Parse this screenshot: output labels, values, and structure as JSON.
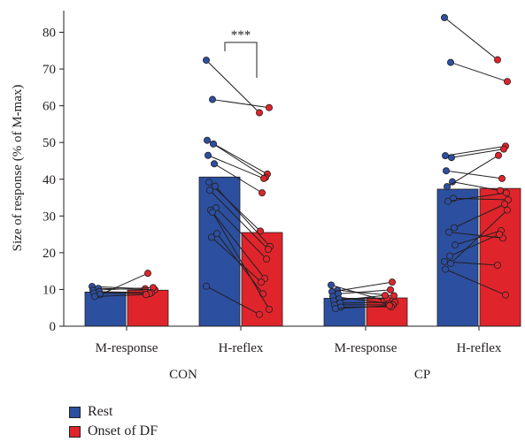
{
  "chart_data": {
    "type": "bar",
    "ylabel": "Size of response (% of M-max)",
    "ylim": [
      0,
      85
    ],
    "yticks": [
      0,
      10,
      20,
      30,
      40,
      50,
      60,
      70,
      80
    ],
    "groups": [
      {
        "name": "CON",
        "categories": [
          "M-response",
          "H-reflex"
        ]
      },
      {
        "name": "CP",
        "categories": [
          "M-response",
          "H-reflex"
        ]
      }
    ],
    "series": [
      {
        "name": "Rest",
        "color": "#2c4f9f",
        "values": [
          9.3,
          40.6,
          7.6,
          37.3
        ]
      },
      {
        "name": "Onset of DF",
        "color": "#e0242b",
        "values": [
          9.8,
          25.5,
          7.7,
          37.5
        ]
      }
    ],
    "paired_points": [
      [
        [
          10.8,
          10.2
        ],
        [
          10.3,
          9.9
        ],
        [
          9.8,
          10.5
        ],
        [
          9.4,
          9.1
        ],
        [
          9.0,
          8.9
        ],
        [
          8.6,
          14.4
        ],
        [
          8.1,
          8.6
        ]
      ],
      [
        [
          72.4,
          58.1
        ],
        [
          61.7,
          59.5
        ],
        [
          50.6,
          41.4
        ],
        [
          49.6,
          40.5
        ],
        [
          46.5,
          40.2
        ],
        [
          44.2,
          36.3
        ],
        [
          39.2,
          25.9
        ],
        [
          38.1,
          21.7
        ],
        [
          37.0,
          20.9
        ],
        [
          32.2,
          18.3
        ],
        [
          31.6,
          13.0
        ],
        [
          25.2,
          8.8
        ],
        [
          24.2,
          12.0
        ],
        [
          10.9,
          3.2
        ],
        [
          31.0,
          4.6
        ]
      ],
      [
        [
          11.2,
          7.0
        ],
        [
          9.8,
          8.3
        ],
        [
          9.4,
          12.0
        ],
        [
          8.8,
          9.9
        ],
        [
          8.1,
          6.2
        ],
        [
          7.4,
          7.6
        ],
        [
          6.9,
          8.4
        ],
        [
          6.3,
          6.5
        ],
        [
          5.8,
          5.8
        ],
        [
          5.2,
          5.3
        ],
        [
          4.8,
          5.6
        ]
      ],
      [
        [
          84.0,
          72.5
        ],
        [
          71.8,
          66.6
        ],
        [
          46.4,
          49.0
        ],
        [
          45.9,
          48.2
        ],
        [
          42.3,
          40.2
        ],
        [
          39.3,
          36.9
        ],
        [
          38.0,
          46.5
        ],
        [
          34.8,
          34.4
        ],
        [
          34.0,
          36.3
        ],
        [
          26.8,
          33.2
        ],
        [
          25.6,
          24.0
        ],
        [
          22.1,
          26.0
        ],
        [
          19.1,
          25.0
        ],
        [
          17.6,
          16.6
        ],
        [
          17.1,
          31.6
        ],
        [
          15.5,
          8.5
        ]
      ]
    ],
    "significance": {
      "label": "***",
      "category_index": 1
    },
    "legend": {
      "position": "bottom-left",
      "items": [
        "Rest",
        "Onset of DF"
      ]
    }
  }
}
